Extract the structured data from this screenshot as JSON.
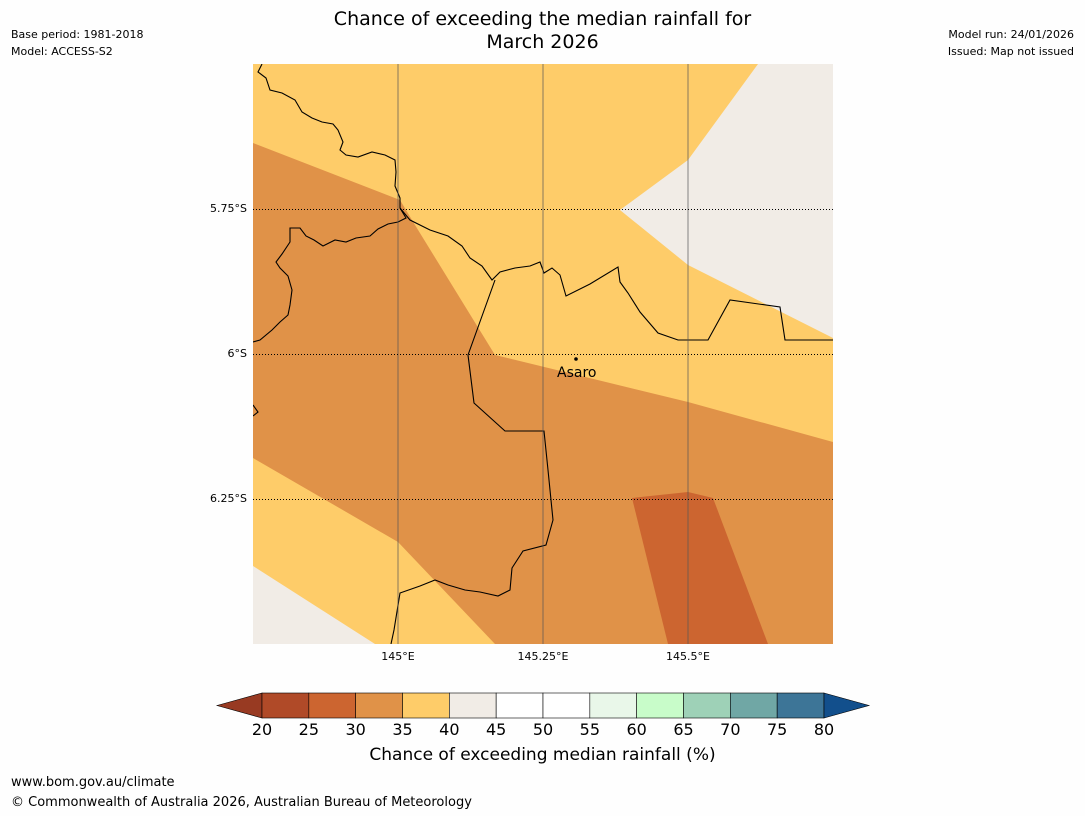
{
  "title": {
    "line1": "Chance of exceeding the median rainfall for",
    "line2": "March 2026"
  },
  "meta_left": {
    "base_period": "Base period: 1981-2018",
    "model": "Model: ACCESS-S2"
  },
  "meta_right": {
    "model_run": "Model run: 24/01/2026",
    "issued": "Issued: Map not issued"
  },
  "map": {
    "latitude_labels": [
      "5.75°S",
      "6°S",
      "6.25°S"
    ],
    "longitude_labels": [
      "145°E",
      "145.25°E",
      "145.5°E"
    ],
    "place": "Asaro"
  },
  "colorbar": {
    "ticks": [
      "20",
      "25",
      "30",
      "35",
      "40",
      "45",
      "50",
      "55",
      "60",
      "65",
      "70",
      "75",
      "80"
    ],
    "colors": [
      "#b04a28",
      "#cc6530",
      "#e09248",
      "#fecc69",
      "#f1ece6",
      "#ffffff",
      "#ffffff",
      "#e9f7e9",
      "#c8fcc9",
      "#9ed1b7",
      "#70a7a5",
      "#3d7597"
    ],
    "under_color": "#983a22",
    "over_color": "#124f8c",
    "label": "Chance of exceeding median rainfall (%)"
  },
  "footer": {
    "url": "www.bom.gov.au/climate",
    "copyright": "© Commonwealth of Australia 2026, Australian Bureau of Meteorology"
  }
}
